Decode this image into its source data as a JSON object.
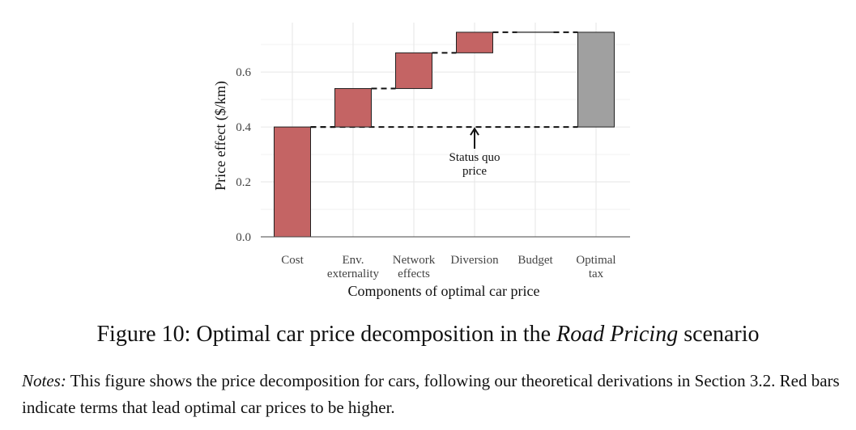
{
  "chart_data": {
    "type": "bar",
    "subtype": "waterfall",
    "categories": [
      [
        "Cost"
      ],
      [
        "Env.",
        "externality"
      ],
      [
        "Network",
        "effects"
      ],
      [
        "Diversion"
      ],
      [
        "Budget"
      ],
      [
        "Optimal",
        "tax"
      ]
    ],
    "bars": [
      {
        "base": 0.0,
        "top": 0.4,
        "color": "#c46464"
      },
      {
        "base": 0.4,
        "top": 0.54,
        "color": "#c46464"
      },
      {
        "base": 0.54,
        "top": 0.67,
        "color": "#c46464"
      },
      {
        "base": 0.67,
        "top": 0.745,
        "color": "#c46464"
      },
      {
        "base": 0.745,
        "top": 0.745,
        "color": "#c46464"
      },
      {
        "base": 0.4,
        "top": 0.745,
        "color": "#a0a0a0"
      }
    ],
    "status_quo_price": 0.4,
    "ylim": [
      0,
      0.78
    ],
    "yticks": [
      0.0,
      0.2,
      0.4,
      0.6
    ],
    "ytick_labels": [
      "0.0",
      "0.2",
      "0.4",
      "0.6"
    ],
    "xlabel": "Components of optimal car price",
    "ylabel": "Price effect ($/km)",
    "annotation": [
      "Status quo",
      "price"
    ],
    "grid": true
  },
  "caption": {
    "prefix": "Figure 10: Optimal car price decomposition in the ",
    "italic": "Road Pricing",
    "suffix": " scenario"
  },
  "notes": {
    "label": "Notes:",
    "text": " This figure shows the price decomposition for cars, following our theoretical derivations in Section 3.2. Red bars indicate terms that lead optimal car prices to be higher."
  }
}
